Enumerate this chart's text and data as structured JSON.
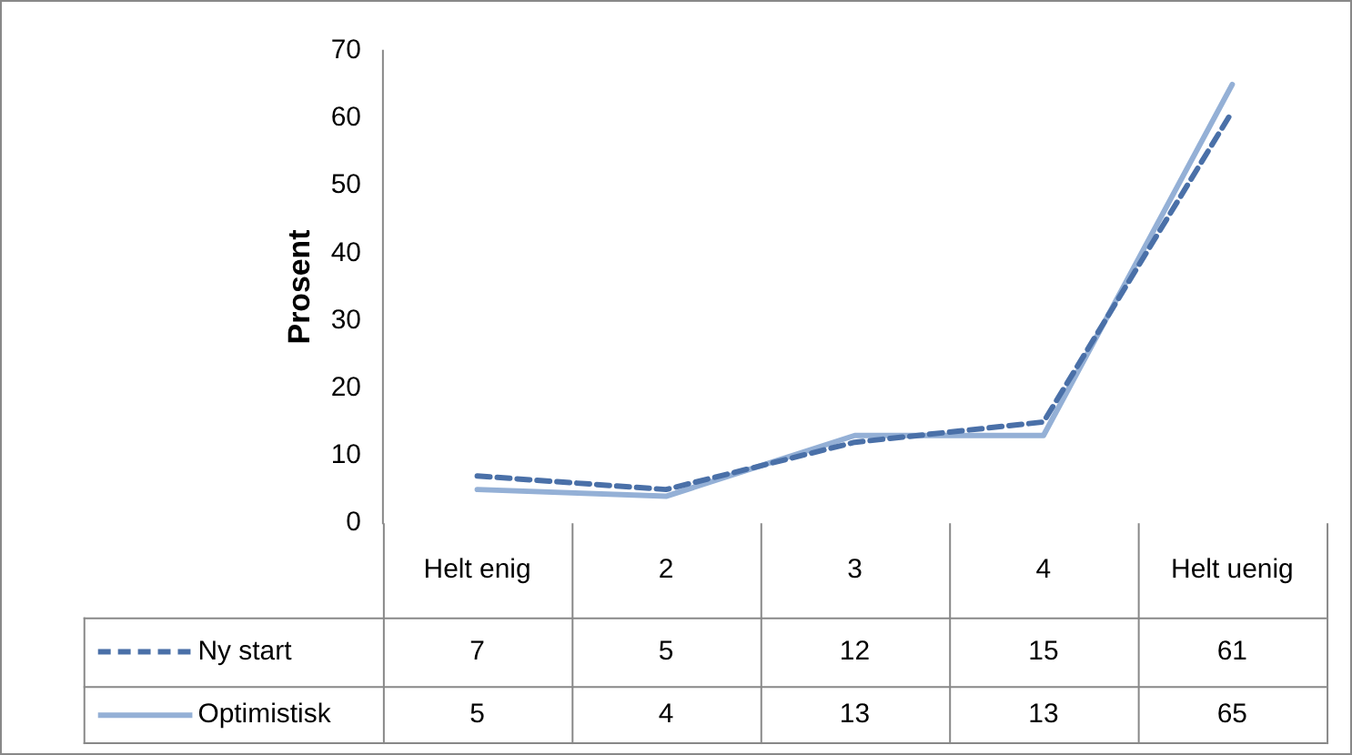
{
  "chart_data": {
    "type": "line",
    "ylabel": "Prosent",
    "categories": [
      "Helt enig",
      "2",
      "3",
      "4",
      "Helt uenig"
    ],
    "series": [
      {
        "name": "Ny start",
        "color": "#4a70a8",
        "line_style": "dashed",
        "values": [
          7,
          5,
          12,
          15,
          61
        ]
      },
      {
        "name": "Optimistisk",
        "color": "#94b0d6",
        "line_style": "solid",
        "values": [
          5,
          4,
          13,
          13,
          65
        ]
      }
    ],
    "ylim": [
      0,
      70
    ],
    "yticks": [
      0,
      10,
      20,
      30,
      40,
      50,
      60,
      70
    ],
    "grid": false,
    "legend": "bottom left",
    "marker": "none",
    "data_labels": true
  }
}
